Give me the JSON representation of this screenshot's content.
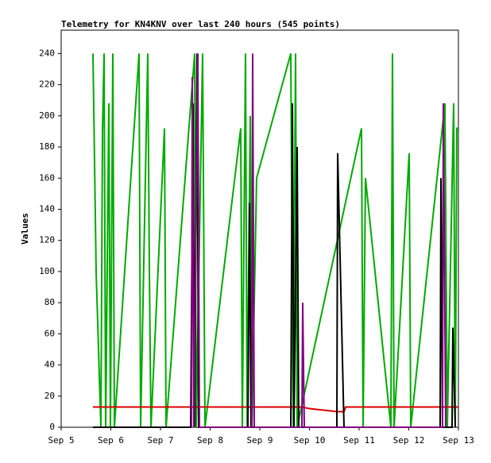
{
  "chart_data": {
    "type": "line",
    "title": "Telemetry for KN4KNV over last 240 hours (545 points)",
    "y_label": "Values",
    "xlim": [
      5,
      13
    ],
    "xticks": [
      {
        "value": 5,
        "label": "Sep 5"
      },
      {
        "value": 6,
        "label": "Sep 6"
      },
      {
        "value": 7,
        "label": "Sep 7"
      },
      {
        "value": 8,
        "label": "Sep 8"
      },
      {
        "value": 9,
        "label": "Sep 9"
      },
      {
        "value": 10,
        "label": "Sep 10"
      },
      {
        "value": 11,
        "label": "Sep 11"
      },
      {
        "value": 12,
        "label": "Sep 12"
      },
      {
        "value": 13,
        "label": "Sep 13"
      }
    ],
    "ylim": [
      0,
      255
    ],
    "yticks": [
      0,
      20,
      40,
      60,
      80,
      100,
      120,
      140,
      160,
      180,
      200,
      220,
      240
    ],
    "series": [
      {
        "color": "#00aa00",
        "x": [
          5.64,
          5.704,
          5.8,
          5.832,
          5.864,
          5.896,
          5.96,
          5.992,
          6.04,
          6.072,
          6.568,
          6.6,
          6.744,
          6.776,
          6.808,
          7.08,
          7.112,
          7.688,
          7.72,
          7.848,
          7.896,
          8.616,
          8.648,
          8.712,
          8.744,
          8.808,
          8.84,
          8.936,
          9.624,
          9.672,
          9.72,
          9.752,
          11.048,
          11.08,
          11.128,
          11.64,
          11.672,
          11.704,
          12.008,
          12.04,
          12.728,
          12.776,
          12.904,
          12.936,
          12.968,
          13
        ],
        "values": [
          240,
          100,
          0,
          190,
          240,
          0,
          208,
          0,
          240,
          0,
          240,
          0,
          240,
          100,
          0,
          192,
          0,
          240,
          0,
          240,
          0,
          192,
          0,
          240,
          0,
          200,
          0,
          160,
          240,
          0,
          240,
          0,
          192,
          0,
          160,
          0,
          240,
          0,
          176,
          0,
          208,
          0,
          208,
          0,
          192,
          192
        ]
      },
      {
        "color": "#dd0000",
        "x": [
          5.64,
          9.848,
          10,
          10.568,
          10.696,
          10.728,
          13
        ],
        "values": [
          13,
          13,
          12,
          10,
          10,
          13,
          13
        ]
      },
      {
        "color": "#000000",
        "x": [
          5.64,
          7.608,
          7.656,
          7.688,
          7.736,
          7.768,
          8.76,
          8.792,
          8.824,
          9.624,
          9.656,
          9.688,
          9.752,
          9.784,
          10.552,
          10.568,
          10.696,
          12.632,
          12.648,
          12.68,
          12.872,
          12.888,
          12.936
        ],
        "values": [
          0,
          0,
          208,
          0,
          240,
          0,
          0,
          144,
          0,
          0,
          208,
          0,
          180,
          0,
          0,
          176,
          0,
          0,
          160,
          0,
          0,
          64,
          0
        ]
      },
      {
        "color": "#800080",
        "x": [
          7.624,
          7.64,
          7.672,
          7.752,
          7.784,
          8.84,
          8.856,
          8.888,
          9.848,
          9.864,
          9.896,
          12.68,
          12.696,
          12.744
        ],
        "values": [
          0,
          225,
          0,
          240,
          0,
          0,
          240,
          0,
          0,
          80,
          0,
          0,
          208,
          0
        ]
      }
    ]
  }
}
